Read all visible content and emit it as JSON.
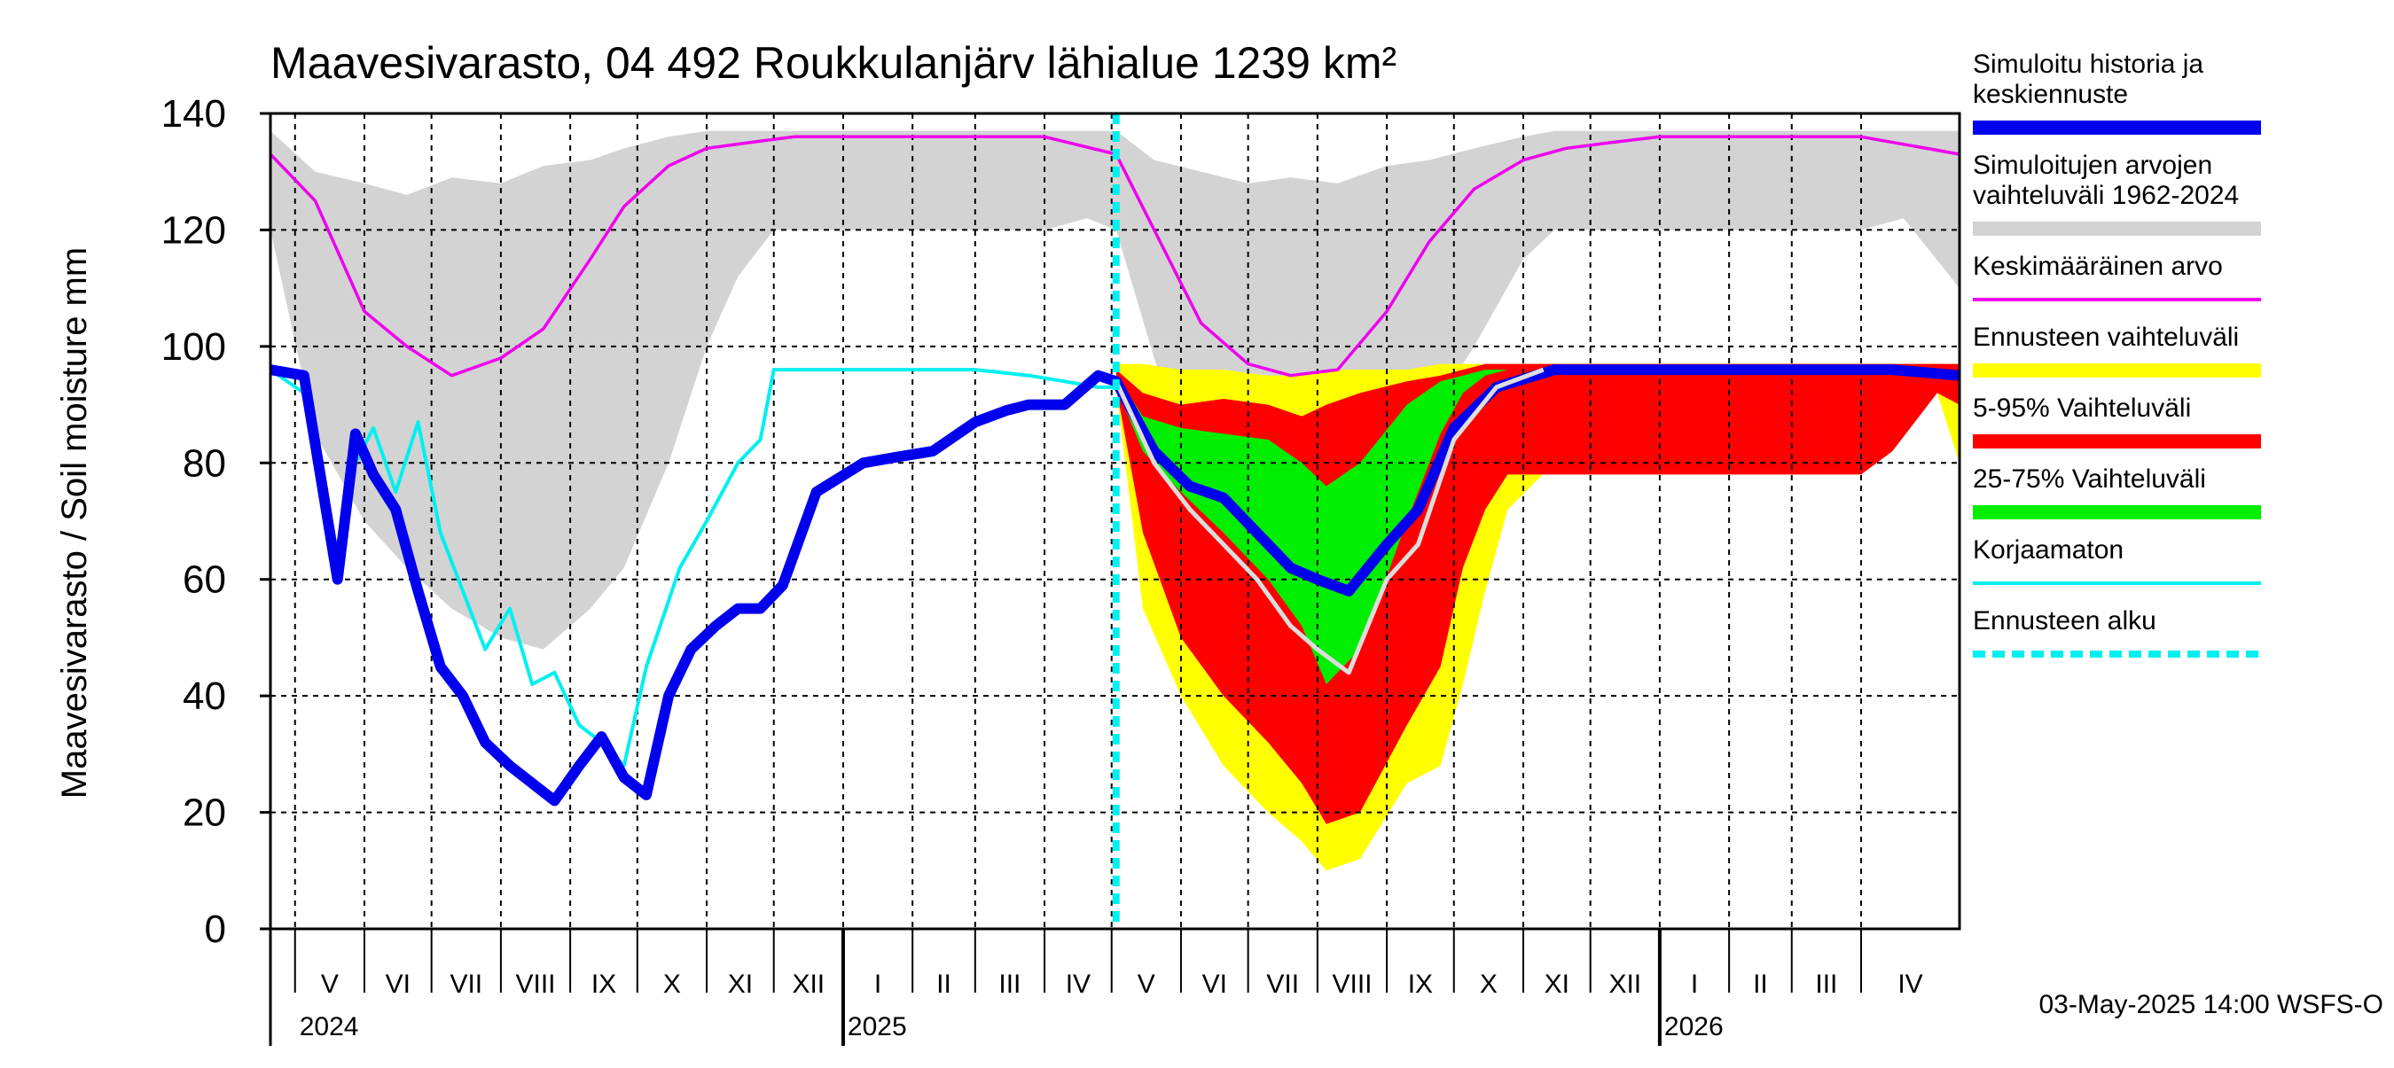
{
  "chart_data": {
    "type": "area",
    "title": "Maavesivarasto, 04 492 Roukkulanjärv lähialue 1239 km²",
    "ylabel": "Maavesivarasto / Soil moisture   mm",
    "ylim": [
      0,
      140
    ],
    "y_ticks": [
      0,
      20,
      40,
      60,
      80,
      100,
      120,
      140
    ],
    "grid": true,
    "legend_position": "right",
    "x_start": "2024-04-20",
    "x_end": "2026-05-15",
    "forecast_start": "2025-05-03",
    "months": [
      {
        "label": "V",
        "start": "2024-05-01"
      },
      {
        "label": "VI",
        "start": "2024-06-01"
      },
      {
        "label": "VII",
        "start": "2024-07-01"
      },
      {
        "label": "VIII",
        "start": "2024-08-01"
      },
      {
        "label": "IX",
        "start": "2024-09-01"
      },
      {
        "label": "X",
        "start": "2024-10-01"
      },
      {
        "label": "XI",
        "start": "2024-11-01"
      },
      {
        "label": "XII",
        "start": "2024-12-01"
      },
      {
        "label": "I",
        "start": "2025-01-01"
      },
      {
        "label": "II",
        "start": "2025-02-01"
      },
      {
        "label": "III",
        "start": "2025-03-01"
      },
      {
        "label": "IV",
        "start": "2025-04-01"
      },
      {
        "label": "V",
        "start": "2025-05-01"
      },
      {
        "label": "VI",
        "start": "2025-06-01"
      },
      {
        "label": "VII",
        "start": "2025-07-01"
      },
      {
        "label": "VIII",
        "start": "2025-08-01"
      },
      {
        "label": "IX",
        "start": "2025-09-01"
      },
      {
        "label": "X",
        "start": "2025-10-01"
      },
      {
        "label": "XI",
        "start": "2025-11-01"
      },
      {
        "label": "XII",
        "start": "2025-12-01"
      },
      {
        "label": "I",
        "start": "2026-01-01"
      },
      {
        "label": "II",
        "start": "2026-02-01"
      },
      {
        "label": "III",
        "start": "2026-03-01"
      },
      {
        "label": "IV",
        "start": "2026-04-01"
      }
    ],
    "years": [
      {
        "label": "2024",
        "date": "2024-05-01"
      },
      {
        "label": "2025",
        "date": "2025-01-01"
      },
      {
        "label": "2026",
        "date": "2026-01-01"
      }
    ],
    "series": [
      {
        "name": "Simuloitujen arvojen vaihteluväli 1962-2024",
        "kind": "band",
        "color": "#d3d3d3",
        "x": [
          "2024-04-20",
          "2024-05-10",
          "2024-06-01",
          "2024-06-20",
          "2024-07-10",
          "2024-08-01",
          "2024-08-20",
          "2024-09-10",
          "2024-09-25",
          "2024-10-15",
          "2024-11-01",
          "2024-11-15",
          "2024-12-01",
          "2025-01-01",
          "2025-02-01",
          "2025-03-01",
          "2025-04-01",
          "2025-04-20",
          "2025-05-03",
          "2025-05-20",
          "2025-06-10",
          "2025-07-01",
          "2025-07-20",
          "2025-08-10",
          "2025-09-01",
          "2025-09-20",
          "2025-10-10",
          "2025-11-01",
          "2025-11-15",
          "2025-12-01",
          "2026-01-01",
          "2026-02-01",
          "2026-03-01",
          "2026-04-01",
          "2026-04-20",
          "2026-05-15"
        ],
        "lower": [
          120,
          85,
          70,
          62,
          55,
          50,
          48,
          55,
          62,
          80,
          100,
          112,
          120,
          120,
          120,
          120,
          120,
          122,
          120,
          98,
          75,
          65,
          60,
          60,
          70,
          88,
          100,
          115,
          120,
          120,
          120,
          120,
          120,
          120,
          122,
          110
        ],
        "upper": [
          137,
          130,
          128,
          126,
          129,
          128,
          131,
          132,
          134,
          136,
          137,
          137,
          137,
          137,
          137,
          137,
          137,
          137,
          137,
          132,
          130,
          128,
          129,
          128,
          131,
          132,
          134,
          136,
          137,
          137,
          137,
          137,
          137,
          137,
          137,
          137
        ]
      },
      {
        "name": "Ennusteen vaihteluväli",
        "kind": "band",
        "color": "#ffff00",
        "x": [
          "2025-05-03",
          "2025-05-15",
          "2025-06-01",
          "2025-06-20",
          "2025-07-10",
          "2025-07-25",
          "2025-08-05",
          "2025-08-20",
          "2025-09-10",
          "2025-09-25",
          "2025-10-05",
          "2025-10-15",
          "2025-10-25",
          "2025-11-15",
          "2025-12-15",
          "2026-01-15",
          "2026-02-15",
          "2026-03-15",
          "2026-04-01",
          "2026-04-15",
          "2026-05-05",
          "2026-05-15"
        ],
        "lower": [
          93,
          55,
          40,
          28,
          20,
          15,
          10,
          12,
          25,
          28,
          42,
          58,
          72,
          80,
          80,
          80,
          80,
          80,
          80,
          85,
          92,
          80
        ],
        "upper": [
          97,
          97,
          96,
          96,
          95,
          95,
          96,
          96,
          96,
          97,
          97,
          97,
          97,
          97,
          97,
          97,
          97,
          97,
          97,
          97,
          97,
          97
        ]
      },
      {
        "name": "5-95% Vaihteluväli",
        "kind": "band",
        "color": "#ff0000",
        "x": [
          "2025-05-03",
          "2025-05-15",
          "2025-06-01",
          "2025-06-20",
          "2025-07-10",
          "2025-07-25",
          "2025-08-05",
          "2025-08-20",
          "2025-09-10",
          "2025-09-25",
          "2025-10-05",
          "2025-10-15",
          "2025-10-25",
          "2025-11-15",
          "2025-12-15",
          "2026-01-15",
          "2026-02-15",
          "2026-03-15",
          "2026-04-01",
          "2026-04-15",
          "2026-05-05",
          "2026-05-15"
        ],
        "lower": [
          93,
          68,
          50,
          40,
          32,
          25,
          18,
          20,
          35,
          45,
          62,
          72,
          78,
          78,
          78,
          78,
          78,
          78,
          78,
          82,
          92,
          90
        ],
        "upper": [
          96,
          92,
          90,
          91,
          90,
          88,
          90,
          92,
          94,
          95,
          96,
          97,
          97,
          97,
          97,
          97,
          97,
          97,
          97,
          97,
          97,
          97
        ]
      },
      {
        "name": "25-75% Vaihteluväli",
        "kind": "band",
        "color": "#00ee00",
        "x": [
          "2025-05-03",
          "2025-05-15",
          "2025-06-01",
          "2025-06-20",
          "2025-07-10",
          "2025-07-25",
          "2025-08-05",
          "2025-08-20",
          "2025-09-10",
          "2025-09-25",
          "2025-10-05",
          "2025-10-15",
          "2025-10-25"
        ],
        "lower": [
          93,
          82,
          75,
          68,
          60,
          52,
          42,
          48,
          70,
          85,
          92,
          95,
          96
        ],
        "upper": [
          95,
          88,
          86,
          85,
          84,
          80,
          76,
          80,
          90,
          94,
          95,
          96,
          96
        ]
      },
      {
        "name": "Korjaamaton",
        "kind": "line",
        "color": "#00f0f0",
        "x": [
          "2024-04-20",
          "2024-05-05",
          "2024-05-20",
          "2024-05-28",
          "2024-06-05",
          "2024-06-15",
          "2024-06-25",
          "2024-07-05",
          "2024-07-15",
          "2024-07-25",
          "2024-08-05",
          "2024-08-15",
          "2024-08-25",
          "2024-09-05",
          "2024-09-15",
          "2024-09-25",
          "2024-10-05",
          "2024-10-20",
          "2024-11-01",
          "2024-11-15",
          "2024-11-25",
          "2024-12-01",
          "2025-01-01",
          "2025-02-01",
          "2025-03-01",
          "2025-03-25",
          "2025-04-10",
          "2025-04-25",
          "2025-05-03"
        ],
        "y": [
          96,
          92,
          60,
          80,
          86,
          75,
          87,
          68,
          58,
          48,
          55,
          42,
          44,
          35,
          32,
          28,
          45,
          62,
          70,
          80,
          84,
          96,
          96,
          96,
          96,
          95,
          94,
          93,
          93
        ]
      },
      {
        "name": "Simuloitu historia ja keskiennuste",
        "kind": "line",
        "color": "#0000ee",
        "x": [
          "2024-04-20",
          "2024-05-05",
          "2024-05-20",
          "2024-05-28",
          "2024-06-05",
          "2024-06-15",
          "2024-06-25",
          "2024-07-05",
          "2024-07-15",
          "2024-07-25",
          "2024-08-05",
          "2024-08-15",
          "2024-08-25",
          "2024-09-05",
          "2024-09-15",
          "2024-09-25",
          "2024-10-05",
          "2024-10-15",
          "2024-10-25",
          "2024-11-05",
          "2024-11-15",
          "2024-11-25",
          "2024-12-05",
          "2024-12-20",
          "2025-01-10",
          "2025-01-25",
          "2025-02-10",
          "2025-03-01",
          "2025-03-15",
          "2025-03-25",
          "2025-04-10",
          "2025-04-25",
          "2025-05-03",
          "2025-05-20",
          "2025-06-05",
          "2025-06-20",
          "2025-07-05",
          "2025-07-20",
          "2025-08-01",
          "2025-08-15",
          "2025-09-01",
          "2025-09-15",
          "2025-10-01",
          "2025-10-20",
          "2025-11-15",
          "2025-12-15",
          "2026-02-01",
          "2026-03-15",
          "2026-04-15",
          "2026-05-15"
        ],
        "y": [
          96,
          95,
          60,
          85,
          78,
          72,
          58,
          45,
          40,
          32,
          28,
          25,
          22,
          28,
          33,
          26,
          23,
          40,
          48,
          52,
          55,
          55,
          59,
          75,
          80,
          81,
          82,
          87,
          89,
          90,
          90,
          95,
          94,
          82,
          76,
          74,
          68,
          62,
          60,
          58,
          66,
          72,
          86,
          93,
          96,
          96,
          96,
          96,
          96,
          95
        ]
      },
      {
        "name": "Mediaani",
        "kind": "line",
        "color": "#dddddd",
        "x": [
          "2025-05-03",
          "2025-05-20",
          "2025-06-05",
          "2025-06-20",
          "2025-07-05",
          "2025-07-20",
          "2025-08-01",
          "2025-08-15",
          "2025-09-01",
          "2025-09-15",
          "2025-10-01",
          "2025-10-20",
          "2025-11-10"
        ],
        "y": [
          94,
          80,
          72,
          66,
          60,
          52,
          48,
          44,
          60,
          66,
          84,
          93,
          96
        ]
      },
      {
        "name": "Keskimääräinen arvo",
        "kind": "line",
        "color": "#ee00ee",
        "x": [
          "2024-04-20",
          "2024-05-10",
          "2024-06-01",
          "2024-06-20",
          "2024-07-10",
          "2024-08-01",
          "2024-08-20",
          "2024-09-10",
          "2024-09-25",
          "2024-10-15",
          "2024-11-01",
          "2024-11-20",
          "2024-12-10",
          "2025-01-01",
          "2025-02-01",
          "2025-03-01",
          "2025-04-01",
          "2025-05-03",
          "2025-05-20",
          "2025-06-10",
          "2025-07-01",
          "2025-07-20",
          "2025-08-10",
          "2025-09-01",
          "2025-09-20",
          "2025-10-10",
          "2025-11-01",
          "2025-11-20",
          "2025-12-10",
          "2026-01-01",
          "2026-02-01",
          "2026-03-01",
          "2026-04-01",
          "2026-05-15"
        ],
        "y": [
          133,
          125,
          106,
          100,
          95,
          98,
          103,
          115,
          124,
          131,
          134,
          135,
          136,
          136,
          136,
          136,
          136,
          133,
          120,
          104,
          97,
          95,
          96,
          106,
          118,
          127,
          132,
          134,
          135,
          136,
          136,
          136,
          136,
          133
        ]
      }
    ]
  },
  "legend": [
    {
      "label": "Simuloitu historia ja\nkeskiennuste",
      "color": "#0000ee",
      "style": "solid"
    },
    {
      "label": "Simuloitujen arvojen\nvaihteluväli 1962-2024",
      "color": "#d3d3d3",
      "style": "solid"
    },
    {
      "label": "Keskimääräinen arvo",
      "color": "#ee00ee",
      "style": "thin"
    },
    {
      "label": "Ennusteen vaihteluväli",
      "color": "#ffff00",
      "style": "solid"
    },
    {
      "label": "5-95% Vaihteluväli",
      "color": "#ff0000",
      "style": "solid"
    },
    {
      "label": "25-75% Vaihteluväli",
      "color": "#00ee00",
      "style": "solid"
    },
    {
      "label": "Korjaamaton",
      "color": "#00f0f0",
      "style": "thin"
    },
    {
      "label": "Ennusteen alku",
      "color": "#00f0f0",
      "style": "dashed"
    }
  ],
  "footer": "03-May-2025 14:00 WSFS-O"
}
